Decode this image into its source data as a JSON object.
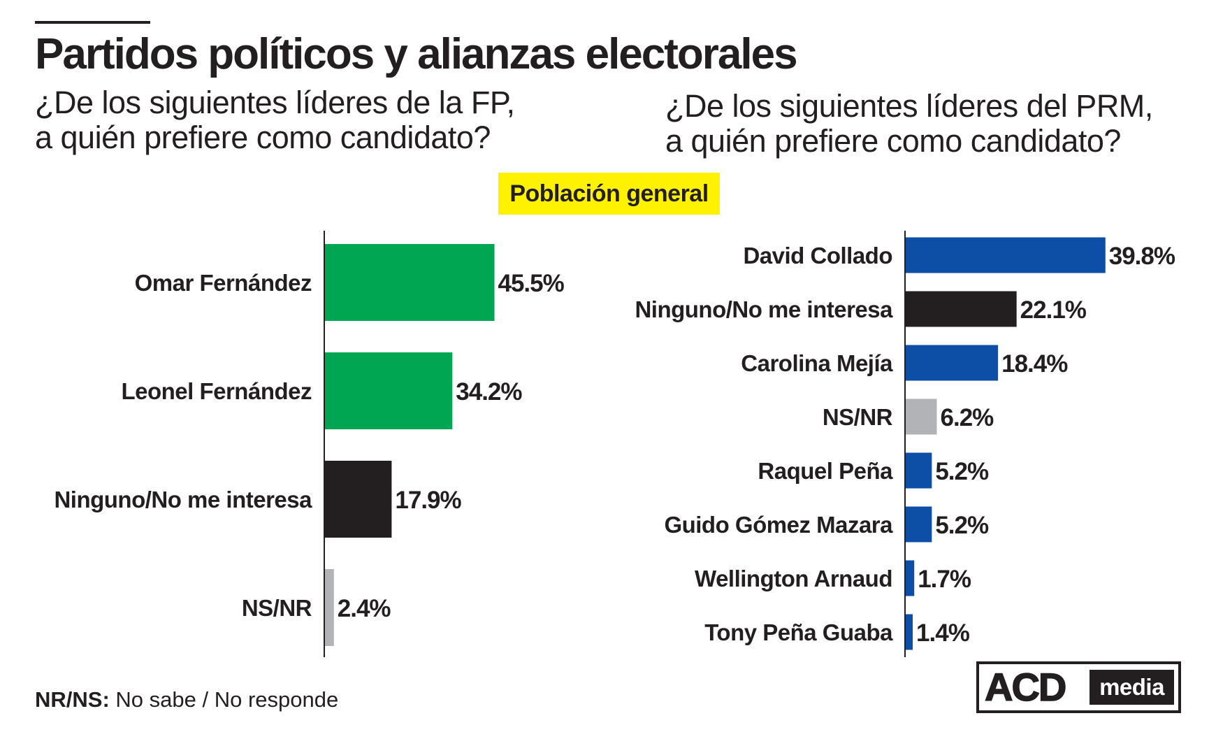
{
  "header": {
    "title": "Partidos políticos y alianzas electorales",
    "badge": "Población general"
  },
  "colors": {
    "fp_green": "#00a651",
    "prm_blue": "#0d4ea6",
    "none_black": "#231f20",
    "nsnr_gray": "#b1b3b6",
    "badge_yellow": "#fff200"
  },
  "footnote": {
    "term": "NR/NS:",
    "definition": "No sabe / No responde"
  },
  "logo": {
    "acd": "ACD",
    "media": "media"
  },
  "chart_data": [
    {
      "type": "bar",
      "orientation": "horizontal",
      "question_lines": [
        "¿De los siguientes líderes de la FP,",
        "a quién prefiere como candidato?"
      ],
      "categories": [
        "Omar Fernández",
        "Leonel Fernández",
        "Ninguno/No me interesa",
        "NS/NR"
      ],
      "values": [
        45.5,
        34.2,
        17.9,
        2.4
      ],
      "value_labels": [
        "45.5%",
        "34.2%",
        "17.9%",
        "2.4%"
      ],
      "colors": [
        "#00a651",
        "#00a651",
        "#231f20",
        "#b1b3b6"
      ],
      "unit": "%",
      "grid": false,
      "legend": "none"
    },
    {
      "type": "bar",
      "orientation": "horizontal",
      "question_lines": [
        "¿De los siguientes líderes del PRM,",
        "a quién prefiere como candidato?"
      ],
      "categories": [
        "David Collado",
        "Ninguno/No me interesa",
        "Carolina Mejía",
        "NS/NR",
        "Raquel Peña",
        "Guido Gómez Mazara",
        "Wellington Arnaud",
        "Tony Peña Guaba"
      ],
      "values": [
        39.8,
        22.1,
        18.4,
        6.2,
        5.2,
        5.2,
        1.7,
        1.4
      ],
      "value_labels": [
        "39.8%",
        "22.1%",
        "18.4%",
        "6.2%",
        "5.2%",
        "5.2%",
        "1.7%",
        "1.4%"
      ],
      "colors": [
        "#0d4ea6",
        "#231f20",
        "#0d4ea6",
        "#b1b3b6",
        "#0d4ea6",
        "#0d4ea6",
        "#0d4ea6",
        "#0d4ea6"
      ],
      "unit": "%",
      "grid": false,
      "legend": "none"
    }
  ]
}
